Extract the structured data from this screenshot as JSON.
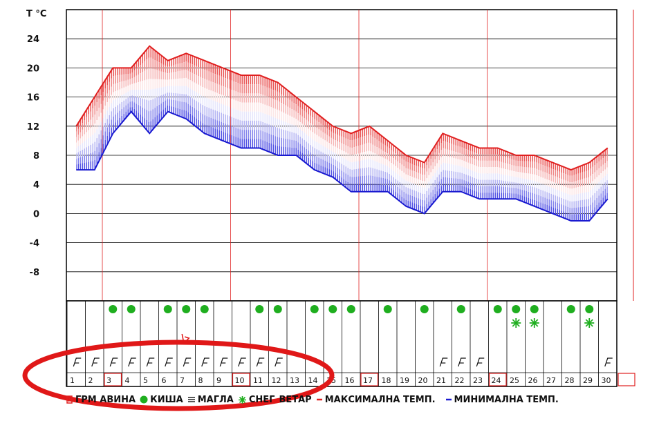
{
  "chart_data": {
    "type": "line",
    "title": "",
    "ylabel": "T °C",
    "ylim": [
      -12,
      28
    ],
    "y_ticks": [
      24,
      20,
      16,
      12,
      8,
      4,
      0,
      -4,
      -8
    ],
    "categories": [
      "1",
      "2",
      "3",
      "4",
      "5",
      "6",
      "7",
      "8",
      "9",
      "10",
      "11",
      "12",
      "13",
      "14",
      "15",
      "16",
      "17",
      "18",
      "19",
      "20",
      "21",
      "22",
      "23",
      "24",
      "25",
      "26",
      "27",
      "28",
      "29",
      "30"
    ],
    "highlighted_days": [
      "3",
      "10",
      "17",
      "24"
    ],
    "series": [
      {
        "name": "МАКСИМАЛНА ТЕМП.",
        "color": "#e02020",
        "values": [
          12,
          16,
          20,
          20,
          23,
          21,
          22,
          21,
          20,
          19,
          19,
          18,
          16,
          14,
          12,
          11,
          12,
          10,
          8,
          7,
          11,
          10,
          9,
          9,
          8,
          8,
          7,
          6,
          7,
          9
        ]
      },
      {
        "name": "МИНИМАЛНА ТЕМП.",
        "color": "#1a1ad0",
        "values": [
          6,
          6,
          11,
          14,
          11,
          14,
          13,
          11,
          10,
          9,
          9,
          8,
          8,
          6,
          5,
          3,
          3,
          3,
          1,
          0,
          3,
          3,
          2,
          2,
          2,
          1,
          0,
          -1,
          -1,
          2
        ]
      }
    ],
    "rain_days": [
      "3",
      "4",
      "6",
      "7",
      "8",
      "11",
      "12",
      "14",
      "15",
      "16",
      "18",
      "20",
      "22",
      "24",
      "25",
      "26",
      "28",
      "29"
    ],
    "snow_days": [
      "25",
      "26",
      "29"
    ],
    "wind_days": [
      "1",
      "2",
      "3",
      "4",
      "5",
      "6",
      "7",
      "8",
      "9",
      "10",
      "11",
      "12",
      "21",
      "22",
      "23",
      "30"
    ],
    "thunder_days": [
      "7"
    ],
    "grid": true
  },
  "legend": {
    "hail": "ГРМ АВИНА",
    "rain": "КИША",
    "fog": "МАГЛА",
    "snow": "СНЕГ",
    "wind": "ВЕТАР",
    "max": "МАКСИМАЛНА ТЕМП.",
    "min": "МИНИМАЛНА ТЕМП."
  },
  "colors": {
    "max_line": "#e02020",
    "min_line": "#1a1ad0",
    "rain": "#1fae1f",
    "snow": "#1fae1f",
    "highlight": "#e02020",
    "annotation": "#e01818"
  }
}
